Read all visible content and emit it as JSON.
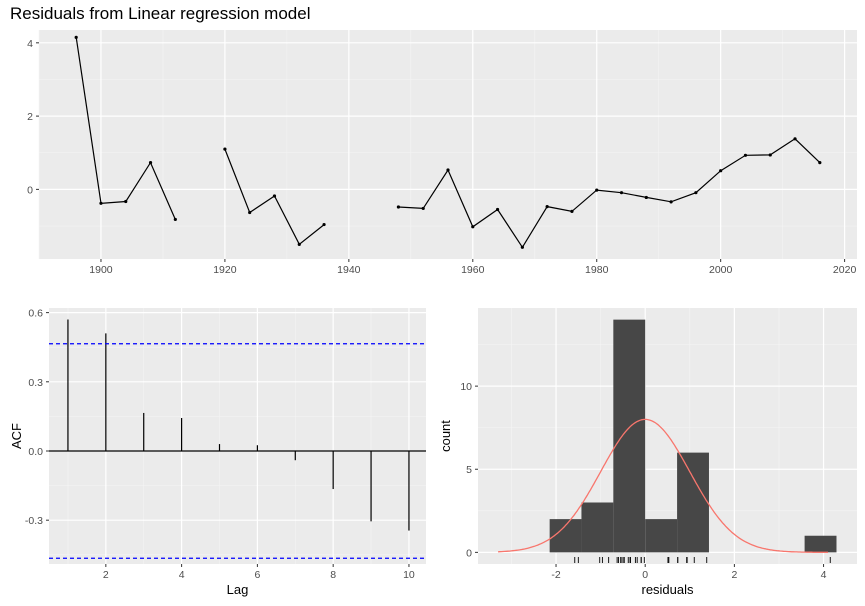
{
  "title": "Residuals from Linear regression model",
  "chart_data": [
    {
      "id": "residuals",
      "type": "line",
      "title": "Residuals from Linear regression model",
      "xlabel": "",
      "ylabel": "",
      "xlim": [
        1890,
        2022
      ],
      "ylim": [
        -1.9,
        4.35
      ],
      "xticks": [
        1900,
        1920,
        1940,
        1960,
        1980,
        2000,
        2020
      ],
      "yticks": [
        0,
        2,
        4
      ],
      "grid": true,
      "segments": [
        [
          [
            1896,
            4.15
          ],
          [
            1900,
            -0.38
          ],
          [
            1904,
            -0.33
          ],
          [
            1908,
            0.73
          ],
          [
            1912,
            -0.82
          ]
        ],
        [
          [
            1920,
            1.1
          ],
          [
            1924,
            -0.63
          ],
          [
            1928,
            -0.18
          ],
          [
            1932,
            -1.5
          ],
          [
            1936,
            -0.96
          ]
        ],
        [
          [
            1948,
            -0.48
          ],
          [
            1952,
            -0.52
          ],
          [
            1956,
            0.53
          ],
          [
            1960,
            -1.02
          ],
          [
            1964,
            -0.55
          ],
          [
            1968,
            -1.58
          ],
          [
            1972,
            -0.47
          ],
          [
            1976,
            -0.6
          ],
          [
            1980,
            -0.02
          ],
          [
            1984,
            -0.09
          ],
          [
            1988,
            -0.22
          ],
          [
            1992,
            -0.34
          ],
          [
            1996,
            -0.09
          ],
          [
            2000,
            0.51
          ],
          [
            2004,
            0.93
          ],
          [
            2008,
            0.94
          ],
          [
            2012,
            1.38
          ],
          [
            2016,
            0.73
          ]
        ]
      ]
    },
    {
      "id": "acf",
      "type": "bar",
      "xlabel": "Lag",
      "ylabel": "ACF",
      "xlim": [
        0.5,
        10.45
      ],
      "ylim": [
        -0.49,
        0.62
      ],
      "xticks": [
        2,
        4,
        6,
        8,
        10
      ],
      "yticks": [
        -0.3,
        0.0,
        0.3,
        0.6
      ],
      "ytick_labels": [
        "-0.3",
        "0.0",
        "0.3",
        "0.6"
      ],
      "lags": [
        1,
        2,
        3,
        4,
        5,
        6,
        7,
        8,
        9,
        10
      ],
      "values": [
        0.57,
        0.51,
        0.165,
        0.143,
        0.03,
        0.025,
        -0.04,
        -0.165,
        -0.305,
        -0.345
      ],
      "confidence_limit": 0.465,
      "colors": {
        "limit": "#0000ff"
      }
    },
    {
      "id": "histogram",
      "type": "bar",
      "xlabel": "residuals",
      "ylabel": "count",
      "xlim": [
        -3.75,
        4.75
      ],
      "ylim": [
        -0.7,
        14.7
      ],
      "xticks": [
        -2,
        0,
        2,
        4
      ],
      "yticks": [
        0,
        5,
        10
      ],
      "bins": [
        {
          "from": -2.143,
          "to": -1.43,
          "count": 2
        },
        {
          "from": -1.43,
          "to": -0.715,
          "count": 3
        },
        {
          "from": -0.715,
          "to": 0.0,
          "count": 14
        },
        {
          "from": 0.0,
          "to": 0.715,
          "count": 2
        },
        {
          "from": 0.715,
          "to": 1.43,
          "count": 6
        },
        {
          "from": 3.575,
          "to": 4.29,
          "count": 1
        }
      ],
      "density_curve": {
        "mean": 0,
        "sd": 1.0,
        "peak_count": 8.0,
        "range": [
          -3.3,
          4.1
        ]
      },
      "rug": [
        4.15,
        -0.38,
        -0.33,
        0.73,
        -0.82,
        1.1,
        -0.63,
        -0.18,
        -1.5,
        -0.96,
        -0.48,
        -0.52,
        0.53,
        -1.02,
        -0.55,
        -1.58,
        -0.47,
        -0.6,
        -0.02,
        -0.09,
        -0.22,
        -0.34,
        -0.09,
        0.51,
        0.93,
        0.94,
        1.38,
        0.73
      ],
      "colors": {
        "bar": "#474747",
        "curve": "#f8766d"
      }
    }
  ]
}
